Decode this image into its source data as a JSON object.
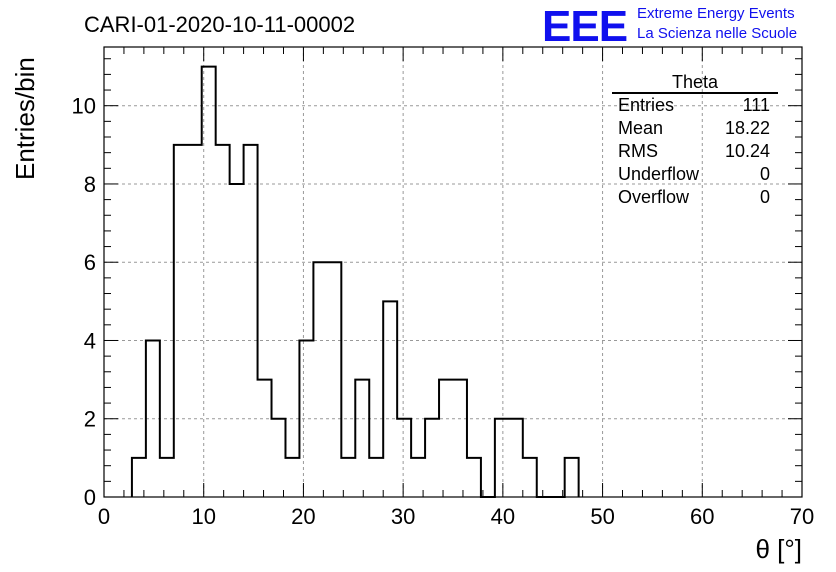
{
  "chart_data": {
    "type": "histogram",
    "title": "CARI-01-2020-10-11-00002",
    "xlabel": "θ [°]",
    "ylabel": "Entries/bin",
    "xlim": [
      0,
      70
    ],
    "ylim": [
      0,
      11.5
    ],
    "xticks": [
      "0",
      "10",
      "20",
      "30",
      "40",
      "50",
      "60",
      "70"
    ],
    "yticks": [
      "0",
      "2",
      "4",
      "6",
      "8",
      "10"
    ],
    "grid": true,
    "bin_width": 1.4,
    "x_start": 2.8,
    "values": [
      1,
      4,
      1,
      9,
      9,
      11,
      9,
      8,
      9,
      3,
      2,
      1,
      4,
      6,
      6,
      1,
      3,
      1,
      5,
      2,
      1,
      2,
      3,
      3,
      1,
      0,
      2,
      2,
      1,
      0,
      0,
      1
    ]
  },
  "stats_box": {
    "title": "Theta",
    "rows": [
      {
        "label": "Entries",
        "value": "111"
      },
      {
        "label": "Mean",
        "value": "18.22"
      },
      {
        "label": "RMS",
        "value": "10.24"
      },
      {
        "label": "Underflow",
        "value": "0"
      },
      {
        "label": "Overflow",
        "value": "0"
      }
    ]
  },
  "logo": {
    "mark": "EEE",
    "line1": "Extreme Energy Events",
    "line2": "La Scienza nelle Scuole",
    "color": "#1010ee"
  }
}
